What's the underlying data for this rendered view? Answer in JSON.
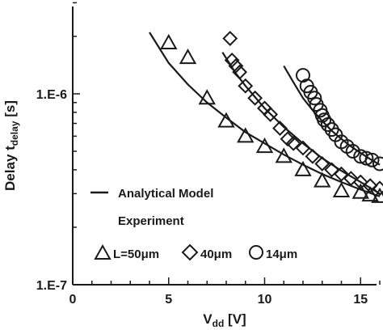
{
  "chart_data": {
    "type": "scatter",
    "title": "",
    "xlabel": {
      "main": "V",
      "sub": "dd",
      "unit": " [V]"
    },
    "ylabel": {
      "main": "Delay t",
      "sub": "delay",
      "unit": " [s]"
    },
    "xlim": [
      0,
      16
    ],
    "ylim": [
      1e-07,
      3e-06
    ],
    "yscale": "log",
    "x_ticks": [
      0,
      5,
      10,
      15
    ],
    "x_tick_labels": [
      "0",
      "5",
      "10",
      "15"
    ],
    "y_ticks": [
      1e-07,
      1e-06
    ],
    "y_tick_labels": [
      "1.E-7",
      "1.E-6"
    ],
    "grid": false,
    "legend": {
      "placement": "bottom-left",
      "line_label": "Analytical Model",
      "experiment_label": "Experiment",
      "markers": [
        {
          "marker": "triangle",
          "label": "L=50μm"
        },
        {
          "marker": "diamond",
          "label": "40μm"
        },
        {
          "marker": "circle",
          "label": "14μm"
        }
      ]
    },
    "series": [
      {
        "name": "L=50μm",
        "marker": "triangle",
        "points": [
          [
            5,
            1.85e-06
          ],
          [
            6,
            1.55e-06
          ],
          [
            7,
            9.5e-07
          ],
          [
            8,
            7.2e-07
          ],
          [
            9,
            6e-07
          ],
          [
            10,
            5.3e-07
          ],
          [
            11,
            4.7e-07
          ],
          [
            12,
            4e-07
          ],
          [
            13,
            3.5e-07
          ],
          [
            14,
            3.1e-07
          ],
          [
            15,
            3.05e-07
          ],
          [
            15.5,
            2.95e-07
          ],
          [
            16,
            2.9e-07
          ]
        ],
        "model": [
          [
            4,
            2.1e-06
          ],
          [
            5,
            1.45e-06
          ],
          [
            6,
            1.12e-06
          ],
          [
            7,
            9e-07
          ],
          [
            8,
            7.5e-07
          ],
          [
            9,
            6.3e-07
          ],
          [
            10,
            5.5e-07
          ],
          [
            11,
            4.8e-07
          ],
          [
            12,
            4.25e-07
          ],
          [
            13,
            3.8e-07
          ],
          [
            14,
            3.45e-07
          ],
          [
            15,
            3.15e-07
          ],
          [
            16,
            2.9e-07
          ]
        ]
      },
      {
        "name": "40μm",
        "marker": "diamond",
        "points": [
          [
            8.2,
            1.95e-06
          ],
          [
            8.3,
            1.5e-06
          ],
          [
            8.5,
            1.4e-06
          ],
          [
            8.7,
            1.3e-06
          ],
          [
            9.0,
            1.1e-06
          ],
          [
            9.5,
            9.5e-07
          ],
          [
            10.0,
            8.4e-07
          ],
          [
            10.3,
            7.8e-07
          ],
          [
            10.8,
            6.6e-07
          ],
          [
            11.2,
            5.8e-07
          ],
          [
            11.5,
            5.5e-07
          ],
          [
            12.0,
            5.2e-07
          ],
          [
            12.5,
            4.7e-07
          ],
          [
            13.0,
            4.3e-07
          ],
          [
            13.5,
            4e-07
          ],
          [
            14.0,
            3.8e-07
          ],
          [
            14.5,
            3.6e-07
          ],
          [
            15.0,
            3.45e-07
          ],
          [
            15.5,
            3.3e-07
          ],
          [
            16.0,
            3.2e-07
          ]
        ],
        "model": [
          [
            7.8,
            1.65e-06
          ],
          [
            8.5,
            1.28e-06
          ],
          [
            9,
            1.1e-06
          ],
          [
            10,
            8.4e-07
          ],
          [
            11,
            6.7e-07
          ],
          [
            12,
            5.5e-07
          ],
          [
            13,
            4.6e-07
          ],
          [
            14,
            3.95e-07
          ],
          [
            15,
            3.45e-07
          ],
          [
            16,
            3e-07
          ]
        ]
      },
      {
        "name": "14μm",
        "marker": "circle",
        "points": [
          [
            12.0,
            1.25e-06
          ],
          [
            12.2,
            1.1e-06
          ],
          [
            12.4,
            1.02e-06
          ],
          [
            12.6,
            9.5e-07
          ],
          [
            12.7,
            8.8e-07
          ],
          [
            12.9,
            8.2e-07
          ],
          [
            13.0,
            7.7e-07
          ],
          [
            13.1,
            7.3e-07
          ],
          [
            13.3,
            6.9e-07
          ],
          [
            13.5,
            6.5e-07
          ],
          [
            13.7,
            6.1e-07
          ],
          [
            14.0,
            5.6e-07
          ],
          [
            14.3,
            5.3e-07
          ],
          [
            14.6,
            5e-07
          ],
          [
            15.0,
            4.7e-07
          ],
          [
            15.3,
            4.6e-07
          ],
          [
            15.6,
            4.5e-07
          ],
          [
            16.0,
            4.3e-07
          ]
        ],
        "model": [
          [
            11.0,
            1.4e-06
          ],
          [
            11.5,
            1.15e-06
          ],
          [
            12,
            9.5e-07
          ],
          [
            12.5,
            8.2e-07
          ],
          [
            13,
            7.2e-07
          ],
          [
            13.5,
            6.4e-07
          ],
          [
            14,
            5.8e-07
          ],
          [
            14.5,
            5.3e-07
          ],
          [
            15,
            4.9e-07
          ],
          [
            15.5,
            4.55e-07
          ],
          [
            16,
            4.25e-07
          ]
        ]
      }
    ]
  }
}
